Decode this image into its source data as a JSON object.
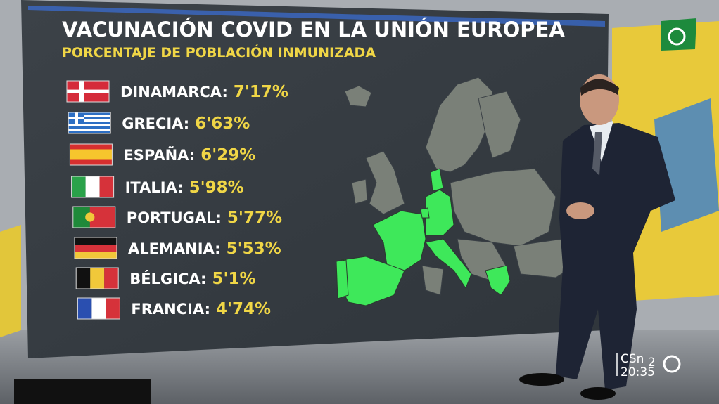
{
  "header": {
    "title": "VACUNACIÓN COVID EN LA UNIÓN EUROPEA",
    "subtitle": "PORCENTAJE DE POBLACIÓN INMUNIZADA"
  },
  "list": [
    {
      "country": "DINAMARCA:",
      "value": "7'17%"
    },
    {
      "country": "GRECIA:",
      "value": "6'63%"
    },
    {
      "country": "ESPAÑA:",
      "value": "6'29%"
    },
    {
      "country": "ITALIA:",
      "value": "5'98%"
    },
    {
      "country": "PORTUGAL:",
      "value": "5'77%"
    },
    {
      "country": "ALEMANIA:",
      "value": "5'53%"
    },
    {
      "country": "BÉLGICA:",
      "value": "5'1%"
    },
    {
      "country": "FRANCIA:",
      "value": "4'74%"
    }
  ],
  "broadcast": {
    "channel": "CSn",
    "channel_number": "2",
    "time": "20:35"
  }
}
